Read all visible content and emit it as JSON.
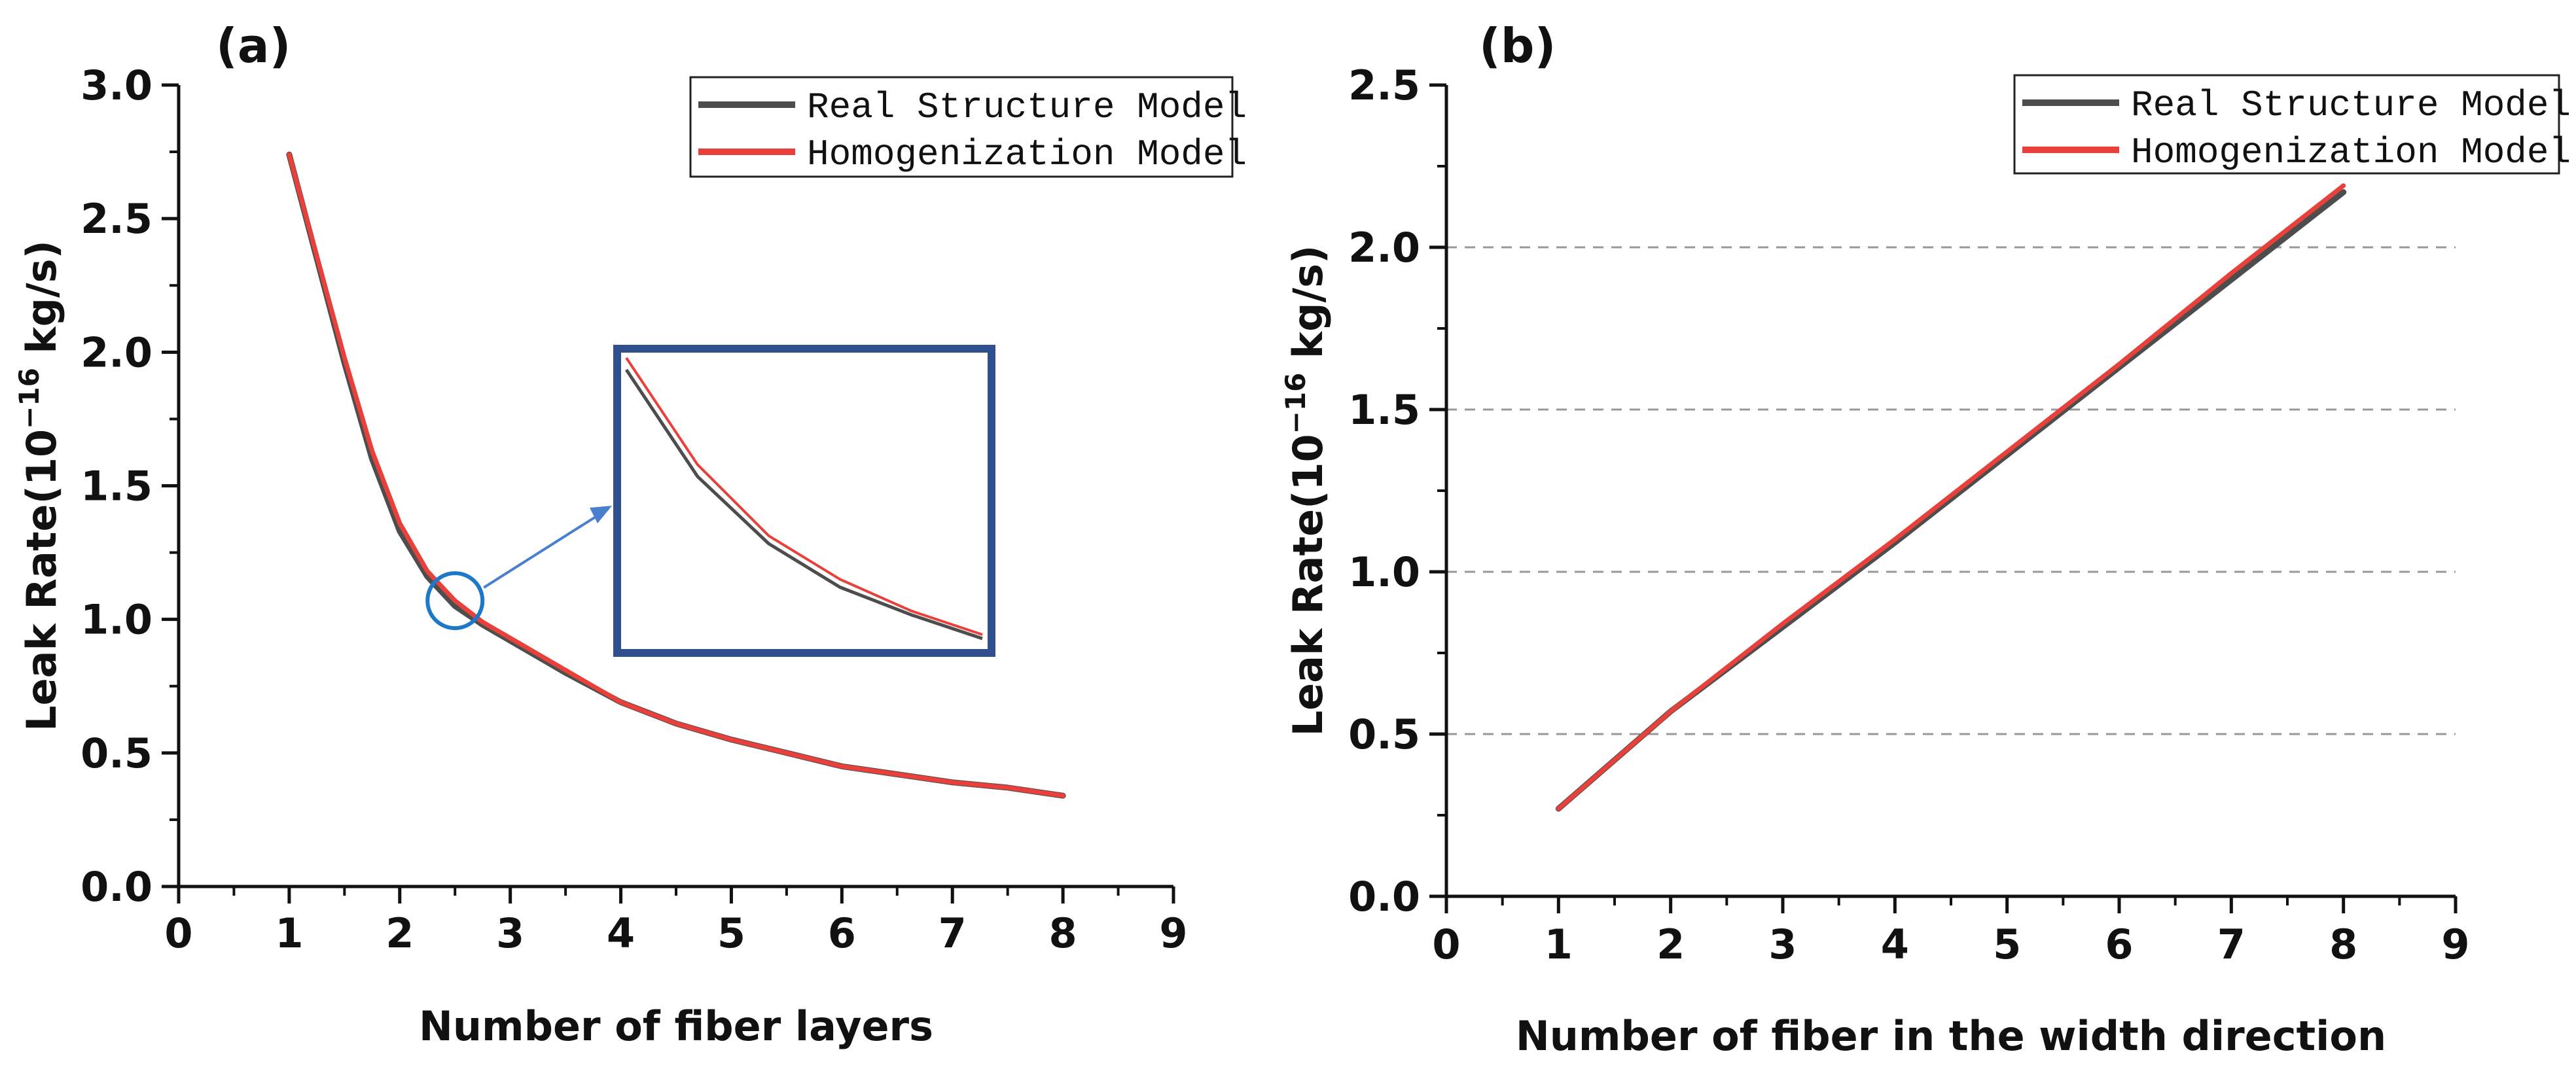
{
  "chart_data": [
    {
      "type": "line",
      "panel_label": "(a)",
      "xlabel": "Number of fiber layers",
      "ylabel_prefix": "Leak Rate(10",
      "ylabel_exponent": "−16",
      "ylabel_suffix": "kg/s)",
      "xlim": [
        0,
        9
      ],
      "ylim": [
        0,
        3.0
      ],
      "xticks": [
        0,
        1,
        2,
        3,
        4,
        5,
        6,
        7,
        8,
        9
      ],
      "xtick_labels": [
        "0",
        "1",
        "2",
        "3",
        "4",
        "5",
        "6",
        "7",
        "8",
        "9"
      ],
      "yticks": [
        0,
        0.5,
        1.0,
        1.5,
        2.0,
        2.5,
        3.0
      ],
      "ytick_labels": [
        "0.0",
        "0.5",
        "1.0",
        "1.5",
        "2.0",
        "2.5",
        "3.0"
      ],
      "grid": false,
      "legend_position": "top-right",
      "series": [
        {
          "name": "Real Structure Model",
          "color": "#4d4d4d",
          "x": [
            1,
            1.25,
            1.5,
            1.75,
            2,
            2.25,
            2.5,
            2.75,
            3,
            3.5,
            4,
            4.5,
            5,
            5.5,
            6,
            6.5,
            7,
            7.5,
            8
          ],
          "values": [
            2.74,
            2.35,
            1.96,
            1.6,
            1.33,
            1.16,
            1.05,
            0.98,
            0.92,
            0.8,
            0.69,
            0.61,
            0.55,
            0.5,
            0.45,
            0.42,
            0.39,
            0.37,
            0.34
          ]
        },
        {
          "name": "Homogenization Model",
          "color": "#e8403a",
          "x": [
            1,
            1.25,
            1.5,
            1.75,
            2,
            2.25,
            2.5,
            2.75,
            3,
            3.5,
            4,
            4.5,
            5,
            5.5,
            6,
            6.5,
            7,
            7.5,
            8
          ],
          "values": [
            2.74,
            2.36,
            1.98,
            1.63,
            1.36,
            1.18,
            1.07,
            0.99,
            0.93,
            0.81,
            0.69,
            0.61,
            0.55,
            0.5,
            0.45,
            0.42,
            0.39,
            0.37,
            0.34
          ]
        }
      ],
      "inset": {
        "x": [
          1.75,
          2,
          2.25,
          2.5,
          2.75,
          3
        ],
        "real": [
          1.6,
          1.33,
          1.16,
          1.05,
          0.98,
          0.92
        ],
        "homog": [
          1.63,
          1.36,
          1.18,
          1.07,
          0.99,
          0.93
        ],
        "highlight_x": 2.5,
        "highlight_y": 1.07,
        "border_color": "#2f4f8f",
        "marker_color": "#1e78c8",
        "arrow_color": "#4a7fd0"
      }
    },
    {
      "type": "line",
      "panel_label": "(b)",
      "xlabel": "Number of fiber in the width direction",
      "ylabel_prefix": "Leak Rate(10",
      "ylabel_exponent": "−16",
      "ylabel_suffix": "kg/s)",
      "xlim": [
        0,
        9
      ],
      "ylim": [
        0,
        2.5
      ],
      "xticks": [
        0,
        1,
        2,
        3,
        4,
        5,
        6,
        7,
        8,
        9
      ],
      "xtick_labels": [
        "0",
        "1",
        "2",
        "3",
        "4",
        "5",
        "6",
        "7",
        "8",
        "9"
      ],
      "yticks": [
        0,
        0.5,
        1.0,
        1.5,
        2.0,
        2.5
      ],
      "ytick_labels": [
        "0.0",
        "0.5",
        "1.0",
        "1.5",
        "2.0",
        "2.5"
      ],
      "grid": true,
      "gridlines_y": [
        0.5,
        1.0,
        1.5,
        2.0
      ],
      "legend_position": "top-right",
      "series": [
        {
          "name": "Real Structure Model",
          "color": "#4d4d4d",
          "x": [
            1,
            2,
            3,
            4,
            5,
            6,
            7,
            8
          ],
          "values": [
            0.27,
            0.57,
            0.83,
            1.09,
            1.36,
            1.63,
            1.9,
            2.17
          ]
        },
        {
          "name": "Homogenization Model",
          "color": "#e8403a",
          "x": [
            1,
            2,
            3,
            4,
            5,
            6,
            7,
            8
          ],
          "values": [
            0.27,
            0.57,
            0.84,
            1.1,
            1.37,
            1.64,
            1.92,
            2.19
          ]
        }
      ]
    }
  ]
}
